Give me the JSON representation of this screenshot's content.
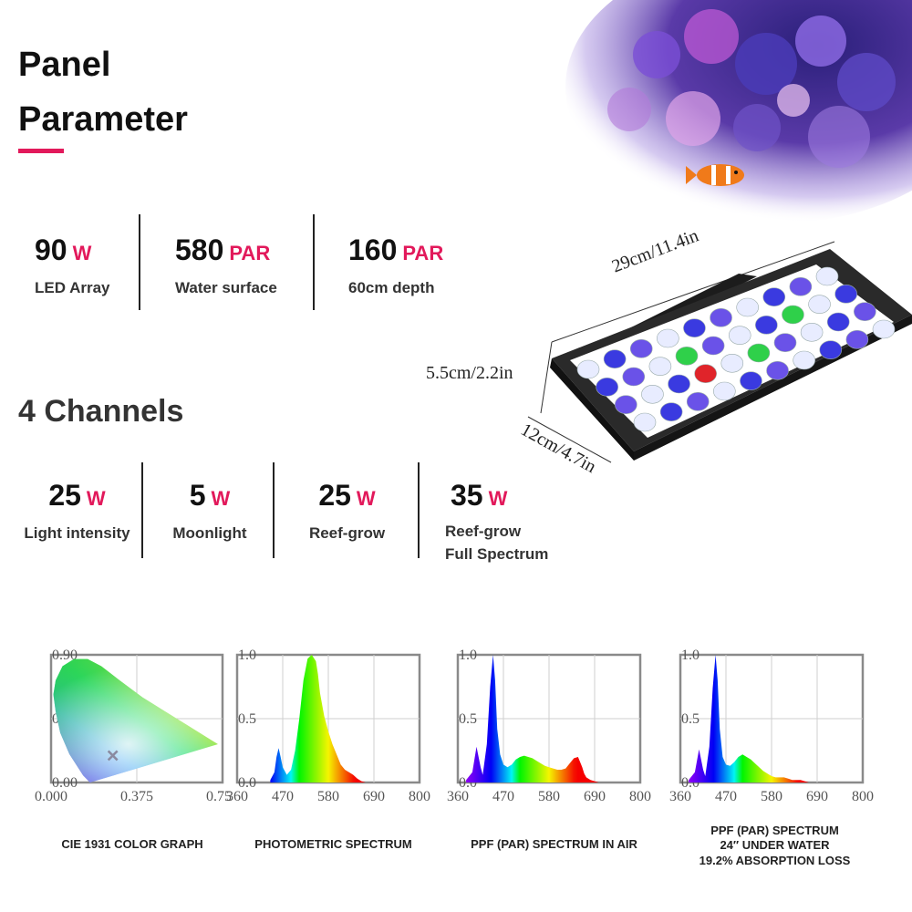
{
  "colors": {
    "accent": "#e2195b",
    "dark": "#222222"
  },
  "header": {
    "line1": "Panel",
    "line2": "Parameter"
  },
  "panel_stats": [
    {
      "value": "90",
      "unit": "W",
      "label": "LED Array"
    },
    {
      "value": "580",
      "unit": "PAR",
      "label": "Water surface"
    },
    {
      "value": "160",
      "unit": "PAR",
      "label": "60cm depth"
    }
  ],
  "channels_title": "4 Channels",
  "channels": [
    {
      "value": "25",
      "unit": "W",
      "label": "Light intensity"
    },
    {
      "value": "5",
      "unit": "W",
      "label": "Moonlight"
    },
    {
      "value": "25",
      "unit": "W",
      "label": "Reef-grow"
    },
    {
      "value": "35",
      "unit": "W",
      "label": "Reef-grow\nFull Spectrum"
    }
  ],
  "dimensions": {
    "length": "29cm/11.4in",
    "height": "5.5cm/2.2in",
    "width": "12cm/4.7in"
  },
  "chart_data": [
    {
      "type": "scatter",
      "caption": "CIE 1931 COLOR GRAPH",
      "x_ticks": [
        "0.000",
        "0.375",
        "0.750"
      ],
      "y_ticks": [
        "0.90",
        "0.45",
        "0.00"
      ],
      "xlim": [
        0,
        0.75
      ],
      "ylim": [
        0,
        0.9
      ],
      "point": {
        "x": 0.27,
        "y": 0.19
      }
    },
    {
      "type": "area",
      "caption": "PHOTOMETRIC SPECTRUM",
      "x_ticks": [
        "360",
        "470",
        "580",
        "690",
        "800"
      ],
      "y_ticks": [
        "1.0",
        "0.5",
        "0.0"
      ],
      "xlim": [
        360,
        800
      ],
      "ylim": [
        0,
        1
      ],
      "x": [
        440,
        450,
        455,
        460,
        465,
        470,
        480,
        490,
        500,
        510,
        520,
        530,
        540,
        550,
        555,
        560,
        570,
        580,
        590,
        600,
        610,
        620,
        630,
        640,
        650,
        660,
        670
      ],
      "values": [
        0.02,
        0.08,
        0.2,
        0.27,
        0.2,
        0.12,
        0.06,
        0.1,
        0.25,
        0.5,
        0.8,
        0.97,
        1.0,
        0.95,
        0.85,
        0.7,
        0.52,
        0.4,
        0.3,
        0.22,
        0.14,
        0.1,
        0.08,
        0.06,
        0.03,
        0.01,
        0.0
      ]
    },
    {
      "type": "area",
      "caption": "PPF (PAR) SPECTRUM IN AIR",
      "x_ticks": [
        "360",
        "470",
        "580",
        "690",
        "800"
      ],
      "y_ticks": [
        "1.0",
        "0.5",
        "0.0"
      ],
      "xlim": [
        360,
        800
      ],
      "ylim": [
        0,
        1
      ],
      "x": [
        380,
        395,
        405,
        415,
        420,
        430,
        438,
        445,
        450,
        455,
        462,
        470,
        480,
        490,
        500,
        510,
        520,
        530,
        540,
        550,
        560,
        570,
        580,
        590,
        600,
        610,
        620,
        630,
        640,
        650,
        660,
        665,
        670,
        680,
        690,
        700
      ],
      "values": [
        0.02,
        0.08,
        0.28,
        0.12,
        0.06,
        0.3,
        0.75,
        1.0,
        0.8,
        0.42,
        0.22,
        0.14,
        0.12,
        0.14,
        0.18,
        0.2,
        0.21,
        0.2,
        0.19,
        0.17,
        0.15,
        0.13,
        0.12,
        0.11,
        0.1,
        0.1,
        0.11,
        0.15,
        0.19,
        0.2,
        0.12,
        0.07,
        0.04,
        0.02,
        0.01,
        0.0
      ]
    },
    {
      "type": "area",
      "caption": "PPF (PAR) SPECTRUM\n24″  UNDER WATER\n19.2% ABSORPTION LOSS",
      "x_ticks": [
        "360",
        "470",
        "580",
        "690",
        "800"
      ],
      "y_ticks": [
        "1.0",
        "0.5",
        "0.0"
      ],
      "xlim": [
        360,
        800
      ],
      "ylim": [
        0,
        1
      ],
      "x": [
        380,
        395,
        405,
        415,
        420,
        430,
        438,
        445,
        450,
        455,
        462,
        470,
        480,
        490,
        500,
        510,
        520,
        530,
        540,
        550,
        560,
        570,
        580,
        590,
        600,
        610,
        620,
        630,
        640,
        650,
        660,
        670
      ],
      "values": [
        0.02,
        0.08,
        0.26,
        0.1,
        0.05,
        0.28,
        0.74,
        1.0,
        0.8,
        0.42,
        0.2,
        0.14,
        0.13,
        0.16,
        0.2,
        0.22,
        0.2,
        0.18,
        0.15,
        0.12,
        0.09,
        0.07,
        0.05,
        0.04,
        0.04,
        0.04,
        0.03,
        0.02,
        0.02,
        0.02,
        0.01,
        0.0
      ]
    }
  ]
}
